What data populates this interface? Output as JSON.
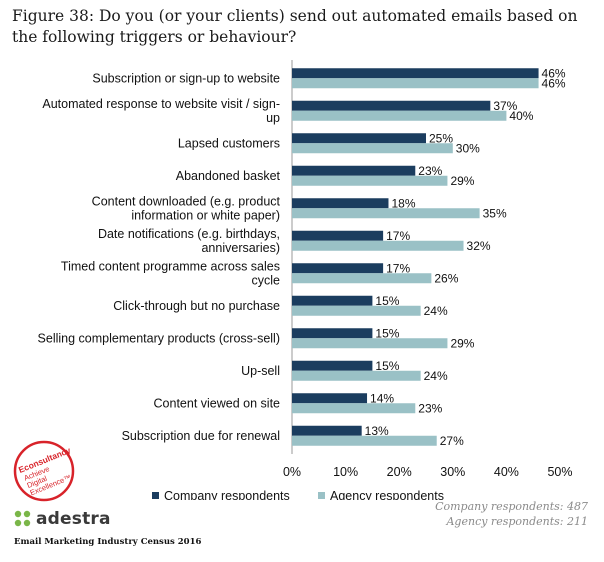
{
  "title": "Figure 38: Do you (or your clients) send out automated emails based on the following triggers or behaviour?",
  "colors": {
    "company": "#1b3d5f",
    "agency": "#9ac1c6",
    "logo_red": "#d8232a",
    "adestra_green": "#7ab648"
  },
  "chart_data": {
    "type": "bar",
    "orientation": "horizontal",
    "categories": [
      [
        "Subscription or sign-up to website"
      ],
      [
        "Automated response to website visit / sign-",
        "up"
      ],
      [
        "Lapsed customers"
      ],
      [
        "Abandoned basket"
      ],
      [
        "Content downloaded (e.g. product",
        "information or white paper)"
      ],
      [
        "Date notifications (e.g. birthdays,",
        "anniversaries)"
      ],
      [
        "Timed content programme across sales",
        "cycle"
      ],
      [
        "Click-through but no purchase"
      ],
      [
        "Selling complementary products (cross-sell)"
      ],
      [
        "Up-sell"
      ],
      [
        "Content viewed on site"
      ],
      [
        "Subscription due for renewal"
      ]
    ],
    "series": [
      {
        "name": "Company respondents",
        "values": [
          46,
          37,
          25,
          23,
          18,
          17,
          17,
          15,
          15,
          15,
          14,
          13
        ]
      },
      {
        "name": "Agency respondents",
        "values": [
          46,
          40,
          30,
          29,
          35,
          32,
          26,
          24,
          29,
          24,
          23,
          27
        ]
      }
    ],
    "value_suffix": "%",
    "xlim": [
      0,
      50
    ],
    "xticks": [
      "0%",
      "10%",
      "20%",
      "30%",
      "40%",
      "50%"
    ],
    "grid": false,
    "legend_position": "bottom"
  },
  "footnotes": {
    "company": "Company respondents: 487",
    "agency": "Agency respondents: 211"
  },
  "logos": {
    "econsultancy": [
      "Econsultancy",
      "Achieve",
      "Digital",
      "Excellence"
    ],
    "econsultancy_mark": "™",
    "adestra": "adestra"
  },
  "census_text": "Email Marketing Industry Census 2016"
}
